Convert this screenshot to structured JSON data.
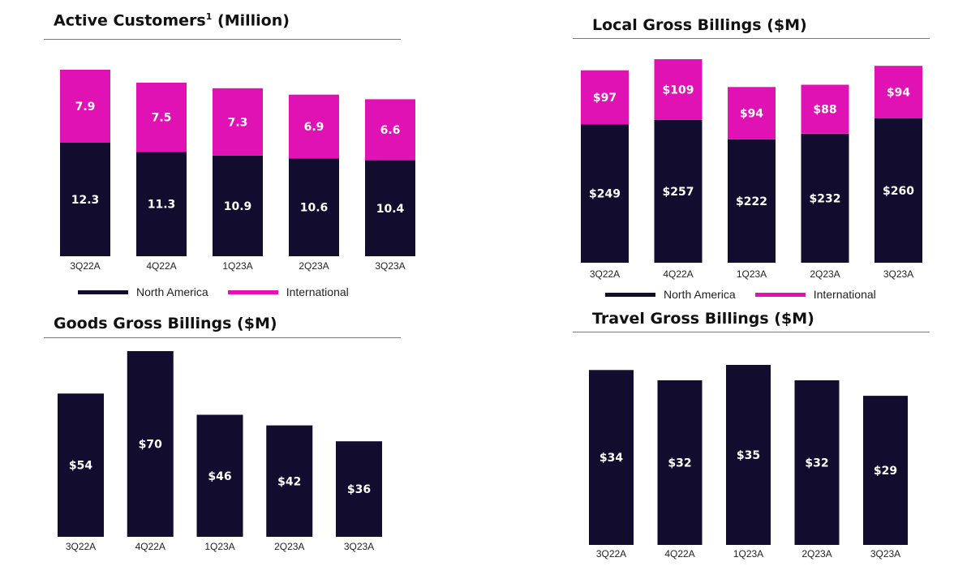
{
  "colors": {
    "north_america": "#120d2e",
    "international": "#e012b4",
    "label_on_bar": "#ffffff",
    "tick": "#222222"
  },
  "legend": {
    "north_america": "North America",
    "international": "International"
  },
  "chart_data": [
    {
      "type": "bar",
      "stacked": true,
      "title": "Active Customers",
      "title_superscript": "1",
      "title_suffix": " (Million)",
      "categories": [
        "3Q22A",
        "4Q22A",
        "1Q23A",
        "2Q23A",
        "3Q23A"
      ],
      "series": [
        {
          "name": "North America",
          "values": [
            12.3,
            11.3,
            10.9,
            10.6,
            10.4
          ],
          "labels": [
            "12.3",
            "11.3",
            "10.9",
            "10.6",
            "10.4"
          ]
        },
        {
          "name": "International",
          "values": [
            7.9,
            7.5,
            7.3,
            6.9,
            6.6
          ],
          "labels": [
            "7.9",
            "7.5",
            "7.3",
            "6.9",
            "6.6"
          ]
        }
      ],
      "ylim": [
        0,
        20.2
      ],
      "legend_position": "bottom"
    },
    {
      "type": "bar",
      "stacked": true,
      "title": "Local Gross Billings ($M)",
      "categories": [
        "3Q22A",
        "4Q22A",
        "1Q23A",
        "2Q23A",
        "3Q23A"
      ],
      "series": [
        {
          "name": "North America",
          "values": [
            249,
            257,
            222,
            232,
            260
          ],
          "labels": [
            "$249",
            "$257",
            "$222",
            "$232",
            "$260"
          ]
        },
        {
          "name": "International",
          "values": [
            97,
            109,
            94,
            88,
            94
          ],
          "labels": [
            "$97",
            "$109",
            "$94",
            "$88",
            "$94"
          ]
        }
      ],
      "ylim": [
        0,
        366
      ],
      "legend_position": "bottom"
    },
    {
      "type": "bar",
      "title": "Goods Gross Billings ($M)",
      "categories": [
        "3Q22A",
        "4Q22A",
        "1Q23A",
        "2Q23A",
        "3Q23A"
      ],
      "series": [
        {
          "values": [
            54,
            70,
            46,
            42,
            36
          ],
          "labels": [
            "$54",
            "$70",
            "$46",
            "$42",
            "$36"
          ]
        }
      ],
      "ylim": [
        0,
        70
      ]
    },
    {
      "type": "bar",
      "title": "Travel Gross Billings ($M)",
      "categories": [
        "3Q22A",
        "4Q22A",
        "1Q23A",
        "2Q23A",
        "3Q23A"
      ],
      "series": [
        {
          "values": [
            34,
            32,
            35,
            32,
            29
          ],
          "labels": [
            "$34",
            "$32",
            "$35",
            "$32",
            "$29"
          ]
        }
      ],
      "ylim": [
        0,
        35
      ]
    }
  ]
}
